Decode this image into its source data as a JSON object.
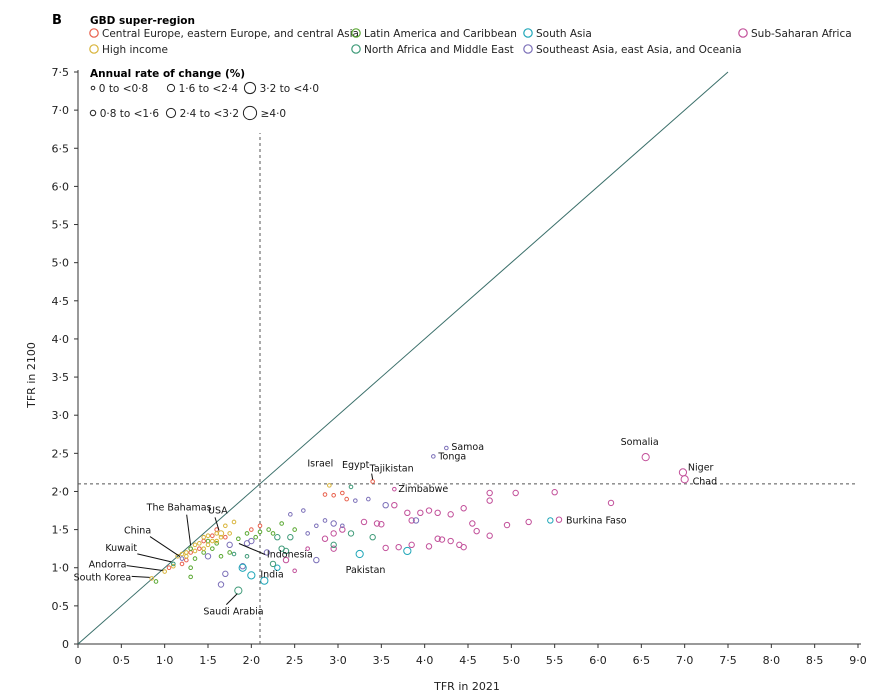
{
  "chart_data": {
    "type": "scatter",
    "panel": "B",
    "xlabel": "TFR in 2021",
    "ylabel": "TFR in 2100",
    "xlim": [
      0,
      9.0
    ],
    "ylim": [
      0,
      7.5
    ],
    "xticks": [
      "0",
      "0·5",
      "1·0",
      "1·5",
      "2·0",
      "2·5",
      "3·0",
      "3·5",
      "4·0",
      "4·5",
      "5·0",
      "5·5",
      "6·0",
      "6·5",
      "7·0",
      "7·5",
      "8·0",
      "8·5",
      "9·0"
    ],
    "yticks": [
      "0",
      "0·5",
      "1·0",
      "1·5",
      "2·0",
      "2·5",
      "3·0",
      "3·5",
      "4·0",
      "4·5",
      "5·0",
      "5·5",
      "6·0",
      "6·5",
      "7·0",
      "7·5"
    ],
    "reference_lines": {
      "diagonal": "y = x",
      "vertical_x": 2.1,
      "horizontal_y": 2.1
    },
    "legend_title": "GBD super-region",
    "regions": [
      {
        "key": "ceeca",
        "name": "Central Europe, eastern Europe, and central Asia",
        "color": "#e8604c"
      },
      {
        "key": "lac",
        "name": "Latin America and Caribbean",
        "color": "#5aa832"
      },
      {
        "key": "sa",
        "name": "South Asia",
        "color": "#1fa6b8"
      },
      {
        "key": "ssa",
        "name": "Sub-Saharan Africa",
        "color": "#c2509a"
      },
      {
        "key": "hi",
        "name": "High income",
        "color": "#d8b43a"
      },
      {
        "key": "name",
        "name": "North Africa and Middle East",
        "color": "#3e9a78"
      },
      {
        "key": "seao",
        "name": "Southeast Asia, east Asia, and Oceania",
        "color": "#7b6fb8"
      }
    ],
    "size_legend_title": "Annual rate of change (%)",
    "size_bins": [
      {
        "label": "0 to <0·8",
        "r": 1.8
      },
      {
        "label": "1·6 to <2·4",
        "r": 3.6
      },
      {
        "label": "3·2 to <4·0",
        "r": 5.6
      },
      {
        "label": "0·8 to <1·6",
        "r": 2.7
      },
      {
        "label": "2·4 to <3·2",
        "r": 4.6
      },
      {
        "label": "≥4·0",
        "r": 6.6
      }
    ],
    "labeled_points": [
      {
        "name": "Somalia",
        "region": "ssa",
        "x": 6.55,
        "y": 2.45,
        "size": 2
      },
      {
        "name": "Niger",
        "region": "ssa",
        "x": 6.98,
        "y": 2.25,
        "size": 2
      },
      {
        "name": "Chad",
        "region": "ssa",
        "x": 7.0,
        "y": 2.16,
        "size": 2
      },
      {
        "name": "Samoa",
        "region": "seao",
        "x": 4.25,
        "y": 2.57,
        "size": 0
      },
      {
        "name": "Tonga",
        "region": "seao",
        "x": 4.1,
        "y": 2.46,
        "size": 0
      },
      {
        "name": "Tajikistan",
        "region": "ceeca",
        "x": 3.4,
        "y": 2.13,
        "size": 0
      },
      {
        "name": "Israel",
        "region": "hi",
        "x": 2.9,
        "y": 2.08,
        "size": 0
      },
      {
        "name": "Egypt",
        "region": "name",
        "x": 3.15,
        "y": 2.06,
        "size": 0
      },
      {
        "name": "Zimbabwe",
        "region": "ssa",
        "x": 3.65,
        "y": 2.03,
        "size": 0
      },
      {
        "name": "Burkina Faso",
        "region": "ssa",
        "x": 5.55,
        "y": 1.63,
        "size": 1
      },
      {
        "name": "Pakistan",
        "region": "sa",
        "x": 3.25,
        "y": 1.18,
        "size": 2
      },
      {
        "name": "India",
        "region": "sa",
        "x": 2.15,
        "y": 0.83,
        "size": 2
      },
      {
        "name": "Indonesia",
        "region": "seao",
        "x": 2.18,
        "y": 1.2,
        "size": 1
      },
      {
        "name": "USA",
        "region": "hi",
        "x": 1.65,
        "y": 1.45,
        "size": 1
      },
      {
        "name": "The Bahamas",
        "region": "lac",
        "x": 1.3,
        "y": 1.25,
        "size": 0
      },
      {
        "name": "China",
        "region": "seao",
        "x": 1.2,
        "y": 1.12,
        "size": 0
      },
      {
        "name": "Kuwait",
        "region": "name",
        "x": 1.1,
        "y": 1.05,
        "size": 0
      },
      {
        "name": "Andorra",
        "region": "hi",
        "x": 1.0,
        "y": 0.95,
        "size": 0
      },
      {
        "name": "South Korea",
        "region": "hi",
        "x": 0.85,
        "y": 0.86,
        "size": 0
      },
      {
        "name": "Saudi Arabia",
        "region": "name",
        "x": 1.85,
        "y": 0.7,
        "size": 2
      }
    ],
    "points": [
      {
        "region": "ssa",
        "x": 4.3,
        "y": 1.35,
        "size": 1
      },
      {
        "region": "ssa",
        "x": 4.15,
        "y": 1.72,
        "size": 1
      },
      {
        "region": "ssa",
        "x": 4.45,
        "y": 1.78,
        "size": 1
      },
      {
        "region": "ssa",
        "x": 4.75,
        "y": 1.98,
        "size": 1
      },
      {
        "region": "ssa",
        "x": 5.05,
        "y": 1.98,
        "size": 1
      },
      {
        "region": "ssa",
        "x": 5.5,
        "y": 1.99,
        "size": 1
      },
      {
        "region": "ssa",
        "x": 6.15,
        "y": 1.85,
        "size": 1
      },
      {
        "region": "ssa",
        "x": 4.75,
        "y": 1.88,
        "size": 1
      },
      {
        "region": "ssa",
        "x": 4.55,
        "y": 1.58,
        "size": 1
      },
      {
        "region": "ssa",
        "x": 4.6,
        "y": 1.48,
        "size": 1
      },
      {
        "region": "ssa",
        "x": 4.75,
        "y": 1.42,
        "size": 1
      },
      {
        "region": "ssa",
        "x": 4.95,
        "y": 1.56,
        "size": 1
      },
      {
        "region": "ssa",
        "x": 5.2,
        "y": 1.6,
        "size": 1
      },
      {
        "region": "ssa",
        "x": 4.4,
        "y": 1.3,
        "size": 1
      },
      {
        "region": "ssa",
        "x": 4.45,
        "y": 1.27,
        "size": 1
      },
      {
        "region": "ssa",
        "x": 4.05,
        "y": 1.28,
        "size": 1
      },
      {
        "region": "ssa",
        "x": 4.15,
        "y": 1.38,
        "size": 1
      },
      {
        "region": "ssa",
        "x": 4.3,
        "y": 1.7,
        "size": 1
      },
      {
        "region": "ssa",
        "x": 4.05,
        "y": 1.75,
        "size": 1
      },
      {
        "region": "ssa",
        "x": 3.95,
        "y": 1.72,
        "size": 1
      },
      {
        "region": "ssa",
        "x": 3.85,
        "y": 1.62,
        "size": 1
      },
      {
        "region": "ssa",
        "x": 3.85,
        "y": 1.3,
        "size": 1
      },
      {
        "region": "ssa",
        "x": 3.7,
        "y": 1.27,
        "size": 1
      },
      {
        "region": "ssa",
        "x": 3.55,
        "y": 1.26,
        "size": 1
      },
      {
        "region": "ssa",
        "x": 3.45,
        "y": 1.58,
        "size": 1
      },
      {
        "region": "ssa",
        "x": 3.5,
        "y": 1.57,
        "size": 1
      },
      {
        "region": "ssa",
        "x": 3.65,
        "y": 1.82,
        "size": 1
      },
      {
        "region": "ssa",
        "x": 3.8,
        "y": 1.72,
        "size": 1
      },
      {
        "region": "ssa",
        "x": 3.3,
        "y": 1.6,
        "size": 1
      },
      {
        "region": "ssa",
        "x": 3.05,
        "y": 1.5,
        "size": 1
      },
      {
        "region": "ssa",
        "x": 2.95,
        "y": 1.45,
        "size": 1
      },
      {
        "region": "ssa",
        "x": 2.85,
        "y": 1.38,
        "size": 1
      },
      {
        "region": "ssa",
        "x": 2.95,
        "y": 1.25,
        "size": 1
      },
      {
        "region": "ssa",
        "x": 2.5,
        "y": 0.96,
        "size": 0
      },
      {
        "region": "ssa",
        "x": 2.65,
        "y": 1.25,
        "size": 0
      },
      {
        "region": "ssa",
        "x": 2.4,
        "y": 1.1,
        "size": 1
      },
      {
        "region": "ssa",
        "x": 4.2,
        "y": 1.37,
        "size": 1
      },
      {
        "region": "seao",
        "x": 3.55,
        "y": 1.82,
        "size": 1
      },
      {
        "region": "seao",
        "x": 3.9,
        "y": 1.62,
        "size": 1
      },
      {
        "region": "seao",
        "x": 3.2,
        "y": 1.88,
        "size": 0
      },
      {
        "region": "seao",
        "x": 3.35,
        "y": 1.9,
        "size": 0
      },
      {
        "region": "seao",
        "x": 3.05,
        "y": 1.55,
        "size": 0
      },
      {
        "region": "seao",
        "x": 2.95,
        "y": 1.58,
        "size": 1
      },
      {
        "region": "seao",
        "x": 2.85,
        "y": 1.62,
        "size": 0
      },
      {
        "region": "seao",
        "x": 2.75,
        "y": 1.55,
        "size": 0
      },
      {
        "region": "seao",
        "x": 2.65,
        "y": 1.45,
        "size": 0
      },
      {
        "region": "seao",
        "x": 2.6,
        "y": 1.75,
        "size": 0
      },
      {
        "region": "seao",
        "x": 2.45,
        "y": 1.7,
        "size": 0
      },
      {
        "region": "seao",
        "x": 2.75,
        "y": 1.1,
        "size": 1
      },
      {
        "region": "seao",
        "x": 2.0,
        "y": 1.35,
        "size": 1
      },
      {
        "region": "seao",
        "x": 1.95,
        "y": 1.32,
        "size": 1
      },
      {
        "region": "seao",
        "x": 1.75,
        "y": 1.3,
        "size": 1
      },
      {
        "region": "seao",
        "x": 1.7,
        "y": 0.92,
        "size": 1
      },
      {
        "region": "seao",
        "x": 1.65,
        "y": 0.78,
        "size": 1
      },
      {
        "region": "seao",
        "x": 1.5,
        "y": 1.15,
        "size": 1
      },
      {
        "region": "seao",
        "x": 1.9,
        "y": 1.02,
        "size": 1
      },
      {
        "region": "sa",
        "x": 3.8,
        "y": 1.22,
        "size": 2
      },
      {
        "region": "sa",
        "x": 5.45,
        "y": 1.62,
        "size": 1
      },
      {
        "region": "sa",
        "x": 2.0,
        "y": 0.9,
        "size": 2
      },
      {
        "region": "sa",
        "x": 1.9,
        "y": 1.0,
        "size": 2
      },
      {
        "region": "sa",
        "x": 2.3,
        "y": 1.0,
        "size": 1
      },
      {
        "region": "name",
        "x": 3.15,
        "y": 1.45,
        "size": 1
      },
      {
        "region": "name",
        "x": 3.4,
        "y": 1.4,
        "size": 1
      },
      {
        "region": "name",
        "x": 2.95,
        "y": 1.3,
        "size": 1
      },
      {
        "region": "name",
        "x": 2.4,
        "y": 1.22,
        "size": 1
      },
      {
        "region": "name",
        "x": 2.3,
        "y": 1.4,
        "size": 1
      },
      {
        "region": "name",
        "x": 2.45,
        "y": 1.4,
        "size": 1
      },
      {
        "region": "name",
        "x": 2.35,
        "y": 1.25,
        "size": 1
      },
      {
        "region": "name",
        "x": 2.25,
        "y": 1.05,
        "size": 1
      },
      {
        "region": "name",
        "x": 1.95,
        "y": 1.15,
        "size": 0
      },
      {
        "region": "name",
        "x": 1.8,
        "y": 1.18,
        "size": 0
      },
      {
        "region": "lac",
        "x": 2.25,
        "y": 1.45,
        "size": 0
      },
      {
        "region": "lac",
        "x": 2.2,
        "y": 1.5,
        "size": 0
      },
      {
        "region": "lac",
        "x": 2.1,
        "y": 1.47,
        "size": 0
      },
      {
        "region": "lac",
        "x": 2.05,
        "y": 1.4,
        "size": 0
      },
      {
        "region": "lac",
        "x": 1.95,
        "y": 1.45,
        "size": 0
      },
      {
        "region": "lac",
        "x": 1.85,
        "y": 1.38,
        "size": 0
      },
      {
        "region": "lac",
        "x": 1.75,
        "y": 1.2,
        "size": 0
      },
      {
        "region": "lac",
        "x": 1.65,
        "y": 1.15,
        "size": 0
      },
      {
        "region": "lac",
        "x": 1.55,
        "y": 1.25,
        "size": 0
      },
      {
        "region": "lac",
        "x": 1.45,
        "y": 1.2,
        "size": 0
      },
      {
        "region": "lac",
        "x": 1.35,
        "y": 1.12,
        "size": 0
      },
      {
        "region": "lac",
        "x": 1.3,
        "y": 1.0,
        "size": 0
      },
      {
        "region": "lac",
        "x": 1.3,
        "y": 0.88,
        "size": 0
      },
      {
        "region": "lac",
        "x": 0.9,
        "y": 0.82,
        "size": 0
      },
      {
        "region": "lac",
        "x": 1.5,
        "y": 1.35,
        "size": 0
      },
      {
        "region": "lac",
        "x": 1.6,
        "y": 1.32,
        "size": 0
      },
      {
        "region": "lac",
        "x": 2.5,
        "y": 1.5,
        "size": 0
      },
      {
        "region": "lac",
        "x": 2.35,
        "y": 1.58,
        "size": 0
      },
      {
        "region": "ceeca",
        "x": 2.85,
        "y": 1.96,
        "size": 0
      },
      {
        "region": "ceeca",
        "x": 2.95,
        "y": 1.95,
        "size": 0
      },
      {
        "region": "ceeca",
        "x": 3.05,
        "y": 1.98,
        "size": 0
      },
      {
        "region": "ceeca",
        "x": 3.1,
        "y": 1.9,
        "size": 0
      },
      {
        "region": "ceeca",
        "x": 2.1,
        "y": 1.55,
        "size": 0
      },
      {
        "region": "ceeca",
        "x": 2.0,
        "y": 1.5,
        "size": 0
      },
      {
        "region": "ceeca",
        "x": 1.7,
        "y": 1.4,
        "size": 0
      },
      {
        "region": "ceeca",
        "x": 1.55,
        "y": 1.42,
        "size": 0
      },
      {
        "region": "ceeca",
        "x": 1.45,
        "y": 1.35,
        "size": 0
      },
      {
        "region": "ceeca",
        "x": 1.4,
        "y": 1.25,
        "size": 0
      },
      {
        "region": "ceeca",
        "x": 1.3,
        "y": 1.2,
        "size": 0
      },
      {
        "region": "ceeca",
        "x": 1.25,
        "y": 1.1,
        "size": 0
      },
      {
        "region": "ceeca",
        "x": 1.2,
        "y": 1.05,
        "size": 0
      },
      {
        "region": "ceeca",
        "x": 1.05,
        "y": 1.0,
        "size": 0
      },
      {
        "region": "ceeca",
        "x": 1.6,
        "y": 1.5,
        "size": 0
      },
      {
        "region": "hi",
        "x": 1.8,
        "y": 1.6,
        "size": 0
      },
      {
        "region": "hi",
        "x": 1.7,
        "y": 1.55,
        "size": 0
      },
      {
        "region": "hi",
        "x": 1.6,
        "y": 1.45,
        "size": 0
      },
      {
        "region": "hi",
        "x": 1.5,
        "y": 1.42,
        "size": 0
      },
      {
        "region": "hi",
        "x": 1.5,
        "y": 1.3,
        "size": 0
      },
      {
        "region": "hi",
        "x": 1.45,
        "y": 1.4,
        "size": 0
      },
      {
        "region": "hi",
        "x": 1.4,
        "y": 1.32,
        "size": 0
      },
      {
        "region": "hi",
        "x": 1.35,
        "y": 1.3,
        "size": 0
      },
      {
        "region": "hi",
        "x": 1.3,
        "y": 1.25,
        "size": 0
      },
      {
        "region": "hi",
        "x": 1.25,
        "y": 1.2,
        "size": 0
      },
      {
        "region": "hi",
        "x": 1.2,
        "y": 1.18,
        "size": 0
      },
      {
        "region": "hi",
        "x": 1.15,
        "y": 1.15,
        "size": 0
      },
      {
        "region": "hi",
        "x": 1.6,
        "y": 1.35,
        "size": 0
      },
      {
        "region": "hi",
        "x": 1.65,
        "y": 1.4,
        "size": 0
      },
      {
        "region": "hi",
        "x": 1.55,
        "y": 1.35,
        "size": 0
      },
      {
        "region": "hi",
        "x": 1.35,
        "y": 1.22,
        "size": 0
      },
      {
        "region": "hi",
        "x": 1.45,
        "y": 1.25,
        "size": 0
      },
      {
        "region": "hi",
        "x": 1.75,
        "y": 1.45,
        "size": 0
      },
      {
        "region": "hi",
        "x": 1.25,
        "y": 1.15,
        "size": 0
      },
      {
        "region": "hi",
        "x": 1.1,
        "y": 1.02,
        "size": 0
      }
    ]
  }
}
